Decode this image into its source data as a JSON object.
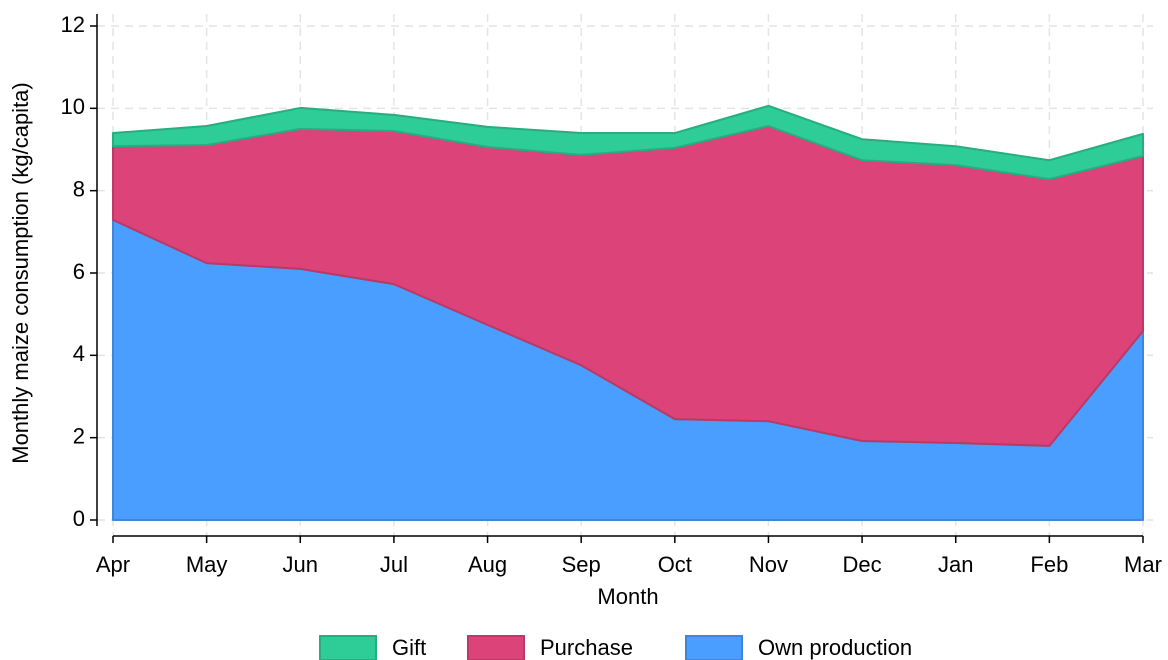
{
  "chart_data": {
    "type": "stacked_area",
    "x_label": "Month",
    "y_label": "Monthly maize consumption (kg/capita)",
    "categories": [
      "Apr",
      "May",
      "Jun",
      "Jul",
      "Aug",
      "Sep",
      "Oct",
      "Nov",
      "Dec",
      "Jan",
      "Feb",
      "Mar"
    ],
    "series": [
      {
        "name": "Own production",
        "color": "#4a9eff",
        "values": [
          7.29,
          6.24,
          6.1,
          5.73,
          4.74,
          3.76,
          2.45,
          2.4,
          1.92,
          1.87,
          1.8,
          4.59
        ]
      },
      {
        "name": "Purchase",
        "color": "#dc4378",
        "values": [
          1.79,
          2.87,
          3.4,
          3.72,
          4.32,
          5.11,
          6.59,
          7.17,
          6.82,
          6.75,
          6.48,
          4.25
        ]
      },
      {
        "name": "Gift",
        "color": "#2ecc96",
        "values": [
          0.32,
          0.46,
          0.51,
          0.39,
          0.49,
          0.53,
          0.36,
          0.49,
          0.51,
          0.46,
          0.46,
          0.54
        ]
      }
    ],
    "ylim": [
      0,
      12
    ],
    "yticks": [
      0,
      2,
      4,
      6,
      8,
      10,
      12
    ],
    "grid": true
  }
}
